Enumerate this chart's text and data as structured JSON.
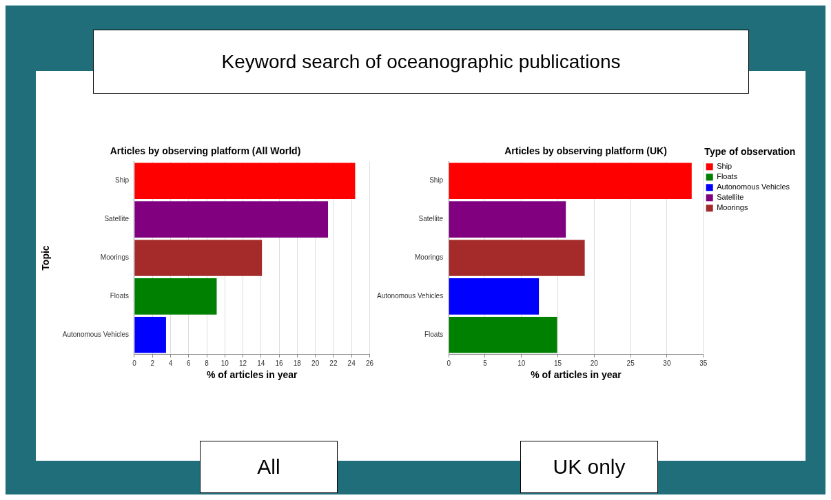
{
  "chart_data": [
    {
      "type": "bar",
      "orientation": "horizontal",
      "title": "Articles by observing platform (All World)",
      "xlabel": "% of articles in year",
      "ylabel": "Topic",
      "annotations": [
        "Keyword search of oceanographic publications",
        "All"
      ],
      "categories": [
        "Ship",
        "Satellite",
        "Moorings",
        "Floats",
        "Autonomous Vehicles"
      ],
      "values": [
        24.4,
        21.4,
        14.1,
        9.1,
        3.5
      ],
      "colors": [
        "#ff0000",
        "#800080",
        "#a52a2a",
        "#008000",
        "#0000ff"
      ],
      "xlim": [
        0,
        26
      ],
      "xticks": [
        0,
        2,
        4,
        6,
        8,
        10,
        12,
        14,
        16,
        18,
        20,
        22,
        24,
        26
      ],
      "grid": "x"
    },
    {
      "type": "bar",
      "orientation": "horizontal",
      "stacked": true,
      "title": "Articles by observing platform (UK)",
      "xlabel": "% of articles in year",
      "legend_title": "Type of observation",
      "legend": "right",
      "annotations": [
        "UK only"
      ],
      "categories": [
        "Ship",
        "Satellite",
        "Moorings",
        "Autonomous Vehicles",
        "Floats"
      ],
      "series": [
        {
          "name": "Ship",
          "color": "#ff0000",
          "values": [
            33.4,
            null,
            null,
            null,
            null
          ]
        },
        {
          "name": "Floats",
          "color": "#008000",
          "values": [
            null,
            null,
            null,
            null,
            14.9
          ]
        },
        {
          "name": "Autonomous Vehicles",
          "color": "#0000ff",
          "values": [
            null,
            null,
            null,
            12.4,
            null
          ]
        },
        {
          "name": "Satellite",
          "color": "#800080",
          "values": [
            null,
            16.1,
            null,
            null,
            null
          ]
        },
        {
          "name": "Moorings",
          "color": "#a52a2a",
          "values": [
            null,
            null,
            18.7,
            null,
            null
          ]
        }
      ],
      "xlim": [
        0,
        35
      ],
      "xticks": [
        0,
        5,
        10,
        15,
        20,
        25,
        30,
        35
      ],
      "grid": "x"
    }
  ]
}
